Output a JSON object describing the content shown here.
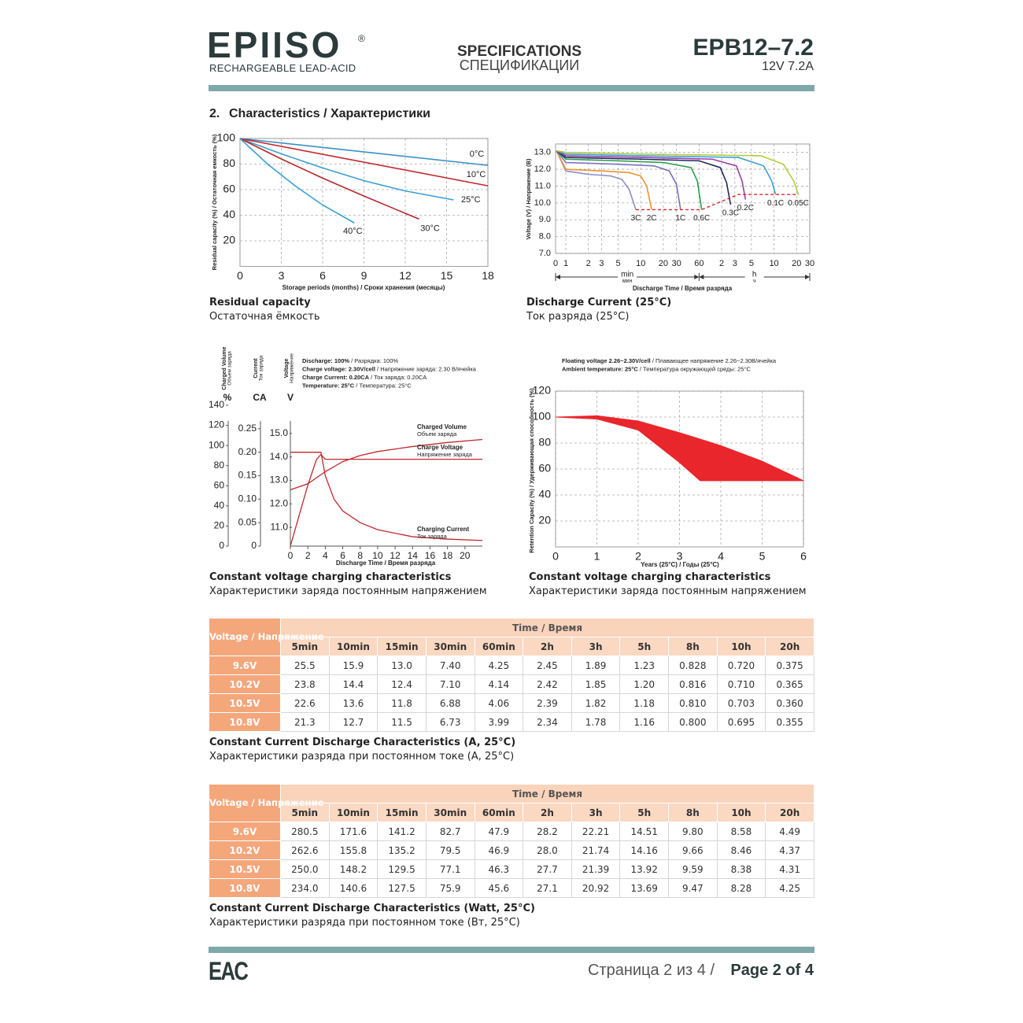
{
  "header": {
    "logo": "EPIISO",
    "registered": "®",
    "subtitle": "RECHARGEABLE LEAD-ACID",
    "doc_title": "SPECIFICATIONS",
    "doc_title_ru": "СПЕЦИФИКАЦИИ",
    "model": "EPB12–7.2",
    "rating": "12V 7.2A"
  },
  "section": {
    "number": "2.",
    "title": "Characteristics / Характеристики"
  },
  "chart_data": [
    {
      "type": "line",
      "caption": "Residual capacity",
      "caption_ru": "Остаточная ёмкость",
      "xlabel": "Storage periods (months) / Сроки хранения (месяцы)",
      "ylabel": "Residual capacity (%) / Остаточная емкость (%)",
      "xlim": [
        0,
        18
      ],
      "ylim": [
        0,
        100
      ],
      "xticks": [
        0,
        3,
        6,
        9,
        12,
        15,
        18
      ],
      "yticks": [
        20,
        40,
        60,
        80,
        100
      ],
      "grid": true,
      "series": [
        {
          "name": "0°C",
          "color": "#3a8fc8",
          "x": [
            0,
            18
          ],
          "values": [
            100,
            79
          ]
        },
        {
          "name": "10°C",
          "color": "#c0282d",
          "x": [
            0,
            18
          ],
          "values": [
            100,
            63
          ]
        },
        {
          "name": "25°C",
          "color": "#3a9fd0",
          "x": [
            0,
            3,
            6,
            9,
            12,
            15.5
          ],
          "values": [
            100,
            88,
            77,
            67,
            59,
            52
          ]
        },
        {
          "name": "30°C",
          "color": "#b8272c",
          "x": [
            0,
            3,
            6,
            9,
            13
          ],
          "values": [
            100,
            84,
            69,
            55,
            37
          ]
        },
        {
          "name": "40°C",
          "color": "#3aa0d8",
          "x": [
            0,
            2,
            4,
            6,
            8.3
          ],
          "values": [
            100,
            80,
            63,
            48,
            34
          ]
        }
      ]
    },
    {
      "type": "line",
      "log_x": true,
      "caption": "Discharge Current (25°C)",
      "caption_ru": "Ток разряда (25°C)",
      "xlabel": "Discharge Time / Время разряда",
      "ylabel": "Voltage (V) / Напряжение (В)",
      "x_origin_label": "0",
      "x_units": [
        {
          "label": "min",
          "label_ru": "мин"
        },
        {
          "label": "h",
          "label_ru": "ч"
        }
      ],
      "xlim": [
        0.73,
        1800
      ],
      "ylim": [
        7,
        13.5
      ],
      "xticks": [
        1,
        2,
        3,
        5,
        10,
        20,
        30,
        60,
        {
          "value": 120,
          "label": "2"
        },
        {
          "value": 180,
          "label": "3"
        },
        {
          "value": 300,
          "label": "5"
        },
        {
          "value": 600,
          "label": "10"
        },
        {
          "value": 1200,
          "label": "20"
        },
        {
          "value": 1800,
          "label": "30"
        }
      ],
      "yticks": [
        {
          "value": 7,
          "label": "7.0"
        },
        {
          "value": 8,
          "label": "8.0"
        },
        {
          "value": 9,
          "label": "9.0"
        },
        {
          "value": 10,
          "label": "10.0"
        },
        {
          "value": 11,
          "label": "11.0"
        },
        {
          "value": 12,
          "label": "12.0"
        },
        {
          "value": 13,
          "label": "13.0"
        }
      ],
      "grid": true,
      "series": [
        {
          "name": "3C",
          "color": "#8c8cc8",
          "x": [
            0.75,
            1,
            2,
            4,
            5.6,
            7,
            8.6
          ],
          "values": [
            13.1,
            11.9,
            11.7,
            11.6,
            11.4,
            10.8,
            9.6
          ]
        },
        {
          "name": "2C",
          "color": "#f0932b",
          "x": [
            0.75,
            1,
            3,
            7,
            10,
            12,
            14
          ],
          "values": [
            13.1,
            12.0,
            11.9,
            11.8,
            11.6,
            11.0,
            9.6
          ]
        },
        {
          "name": "1C",
          "color": "#7b6fc0",
          "x": [
            0.75,
            1,
            5,
            15,
            24,
            30,
            34
          ],
          "values": [
            13.1,
            12.4,
            12.3,
            12.2,
            11.9,
            11.1,
            9.6
          ]
        },
        {
          "name": "0.6C",
          "color": "#2a9d4a",
          "x": [
            0.75,
            1,
            5,
            20,
            47,
            57,
            65
          ],
          "values": [
            13.1,
            12.6,
            12.5,
            12.4,
            12.1,
            11.3,
            9.6
          ]
        },
        {
          "name": "0.3C",
          "color": "#1f2a5c",
          "x": [
            0.75,
            1,
            10,
            60,
            115,
            140,
            158
          ],
          "values": [
            13.1,
            12.7,
            12.6,
            12.5,
            12.1,
            11.2,
            9.9
          ]
        },
        {
          "name": "0.2C",
          "color": "#9b3fa8",
          "x": [
            0.75,
            1,
            10,
            90,
            189,
            225,
            250
          ],
          "values": [
            13.1,
            12.8,
            12.7,
            12.6,
            12.2,
            11.3,
            10.2
          ]
        },
        {
          "name": "0.1C",
          "color": "#3aa0d8",
          "x": [
            0.75,
            1,
            10,
            200,
            437,
            560,
            630
          ],
          "values": [
            13.1,
            12.9,
            12.8,
            12.7,
            12.2,
            11.3,
            10.5
          ]
        },
        {
          "name": "0.05C",
          "color": "#b5cc3a",
          "x": [
            0.75,
            1,
            10,
            400,
            800,
            1100,
            1270
          ],
          "values": [
            13.1,
            13.0,
            12.9,
            12.8,
            12.3,
            11.3,
            10.5
          ]
        }
      ],
      "cutoff": {
        "color": "#d8262c",
        "x": [
          8.6,
          65,
          200,
          1270
        ],
        "values": [
          9.6,
          9.6,
          10.5,
          10.5
        ]
      }
    },
    {
      "type": "multi_axis_line",
      "caption": "Constant voltage charging characteristics",
      "caption_ru": "Характеристики заряда постоянным напряжением",
      "xlabel": "Discharge Time / Время разряда",
      "xlim": [
        0,
        22
      ],
      "xticks": [
        0,
        2,
        4,
        6,
        8,
        10,
        12,
        14,
        16,
        18,
        20
      ],
      "grid": false,
      "notes": [
        {
          "bold": "Discharge: 100%",
          "rest": " / Разрядка: 100%"
        },
        {
          "bold": "Charge voltage: 2.30V/cell",
          "rest": " / Напряжение заряда: 2.30 В/ячейка"
        },
        {
          "bold": "Charge Current: 0.20CA",
          "rest": " / Ток заряда: 0.20CA"
        },
        {
          "bold": "Temperature: 25°C",
          "rest": " / Температура: 25°C"
        }
      ],
      "y_axes": [
        {
          "unit": "%",
          "title": "Charged Volume",
          "title_ru": "Объем заряда",
          "ylim": [
            0,
            140
          ],
          "yticks": [
            0,
            20,
            40,
            60,
            80,
            100,
            120,
            140
          ]
        },
        {
          "unit": "CA",
          "title": "Current",
          "title_ru": "Ток заряда",
          "ylim": [
            0,
            0.3
          ],
          "yticks": [
            0,
            0.05,
            {
              "value": 0.1,
              "label": "0.10"
            },
            0.15,
            {
              "value": 0.2,
              "label": "0.20"
            },
            0.25
          ]
        },
        {
          "unit": "V",
          "title": "Voltage",
          "title_ru": "Напряжение",
          "ylim": [
            10.2,
            16.2
          ],
          "yticks": [
            {
              "value": 11,
              "label": "11.0"
            },
            {
              "value": 12,
              "label": "12.0"
            },
            {
              "value": 13,
              "label": "13.0"
            },
            {
              "value": 14,
              "label": "14.0"
            },
            {
              "value": 15,
              "label": "15.0"
            }
          ]
        }
      ],
      "series": [
        {
          "name": "Charged Volume",
          "name_ru": "Объем заряда",
          "color": "#c0282d",
          "axis": 0,
          "x": [
            0,
            2,
            4,
            6,
            8,
            10,
            14,
            18,
            22
          ],
          "values": [
            56,
            62,
            74,
            84,
            90,
            94,
            99,
            103,
            106
          ]
        },
        {
          "name": "Charge Voltage",
          "name_ru": "Напряжение заряда",
          "color": "#c0282d",
          "axis": 2,
          "x": [
            0,
            1,
            2,
            3,
            3.5,
            4,
            22
          ],
          "values": [
            10.2,
            11.5,
            12.8,
            13.9,
            14.1,
            13.9,
            13.9
          ]
        },
        {
          "name": "Charging Current",
          "name_ru": "Ток заряда",
          "color": "#c0282d",
          "axis": 1,
          "x": [
            0,
            3.5,
            3.6,
            4,
            5,
            6,
            8,
            10,
            14,
            18,
            22
          ],
          "values": [
            0.2,
            0.2,
            0.19,
            0.15,
            0.1,
            0.075,
            0.05,
            0.035,
            0.02,
            0.015,
            0.012
          ]
        }
      ]
    },
    {
      "type": "area",
      "caption": "Constant voltage charging characteristics",
      "caption_ru": "Характеристики заряда постоянным напряжением",
      "xlabel": "Years (25°C) / Годы (25°C)",
      "ylabel": "Retention Capacity (%) / Удерживающая способность (%)",
      "xlim": [
        0,
        6
      ],
      "ylim": [
        0,
        120
      ],
      "xticks": [
        0,
        1,
        2,
        3,
        4,
        5,
        6
      ],
      "yticks": [
        20,
        40,
        60,
        80,
        100,
        120
      ],
      "grid": true,
      "color": "#e8262b",
      "notes": [
        {
          "bold": "Floating voltage 2.26~2.30V/cell",
          "rest": " / Плавающее напряжение 2.26~2.30В/ячейка"
        },
        {
          "bold": "Ambient temperature: 25°C",
          "rest": " / Температура окружающей среды: 25°C"
        }
      ],
      "series": [
        {
          "x": [
            0,
            1,
            2,
            3,
            4,
            5,
            6
          ],
          "values": [
            100,
            101,
            97,
            88,
            78,
            66,
            51
          ]
        },
        {
          "x": [
            0,
            1,
            2,
            3,
            3.5,
            6
          ],
          "values": [
            100,
            98.5,
            90,
            65,
            51,
            51
          ]
        }
      ]
    }
  ],
  "tables": [
    {
      "corner": "Voltage / Напряжение",
      "time_header": "Time / Время",
      "columns": [
        "5min",
        "10min",
        "15min",
        "30min",
        "60min",
        "2h",
        "3h",
        "5h",
        "8h",
        "10h",
        "20h"
      ],
      "rows": [
        {
          "label": "9.6V",
          "cells": [
            "25.5",
            "15.9",
            "13.0",
            "7.40",
            "4.25",
            "2.45",
            "1.89",
            "1.23",
            "0.828",
            "0.720",
            "0.375"
          ]
        },
        {
          "label": "10.2V",
          "cells": [
            "23.8",
            "14.4",
            "12.4",
            "7.10",
            "4.14",
            "2.42",
            "1.85",
            "1.20",
            "0.816",
            "0.710",
            "0.365"
          ]
        },
        {
          "label": "10.5V",
          "cells": [
            "22.6",
            "13.6",
            "11.8",
            "6.88",
            "4.06",
            "2.39",
            "1.82",
            "1.18",
            "0.810",
            "0.703",
            "0.360"
          ]
        },
        {
          "label": "10.8V",
          "cells": [
            "21.3",
            "12.7",
            "11.5",
            "6.73",
            "3.99",
            "2.34",
            "1.78",
            "1.16",
            "0.800",
            "0.695",
            "0.355"
          ]
        }
      ],
      "caption": "Constant Current Discharge Characteristics (A, 25°C)",
      "caption_ru": "Характеристики разряда при постоянном токе (А, 25°C)"
    },
    {
      "corner": "Voltage / Напряжение",
      "time_header": "Time / Время",
      "columns": [
        "5min",
        "10min",
        "15min",
        "30min",
        "60min",
        "2h",
        "3h",
        "5h",
        "8h",
        "10h",
        "20h"
      ],
      "rows": [
        {
          "label": "9.6V",
          "cells": [
            "280.5",
            "171.6",
            "141.2",
            "82.7",
            "47.9",
            "28.2",
            "22.21",
            "14.51",
            "9.80",
            "8.58",
            "4.49"
          ]
        },
        {
          "label": "10.2V",
          "cells": [
            "262.6",
            "155.8",
            "135.2",
            "79.5",
            "46.9",
            "28.0",
            "21.74",
            "14.16",
            "9.66",
            "8.46",
            "4.37"
          ]
        },
        {
          "label": "10.5V",
          "cells": [
            "250.0",
            "148.2",
            "129.5",
            "77.1",
            "46.3",
            "27.7",
            "21.39",
            "13.92",
            "9.59",
            "8.38",
            "4.31"
          ]
        },
        {
          "label": "10.8V",
          "cells": [
            "234.0",
            "140.6",
            "127.5",
            "75.9",
            "45.6",
            "27.1",
            "20.92",
            "13.69",
            "9.47",
            "8.28",
            "4.25"
          ]
        }
      ],
      "caption": "Constant Current Discharge Characteristics (Watt, 25°C)",
      "caption_ru": "Характеристики разряда при постоянном токе (Вт, 25°C)"
    }
  ],
  "footer": {
    "mark": "EAC",
    "page_ru": "Страница 2 из 4 /",
    "page": "Page 2 of 4"
  }
}
